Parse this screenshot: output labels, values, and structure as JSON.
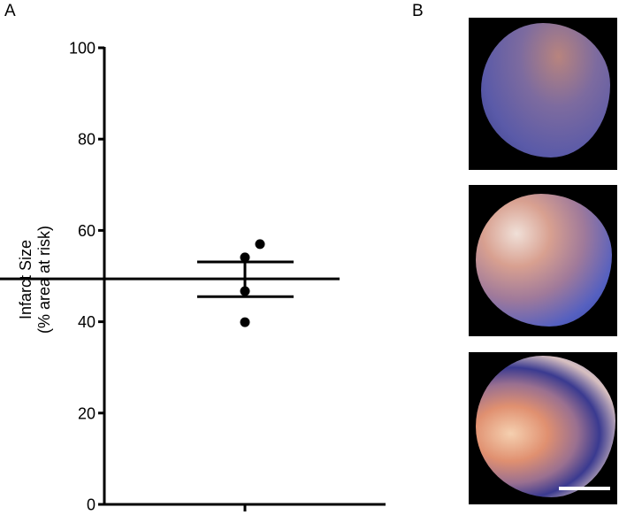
{
  "panels": {
    "a_label": "A",
    "b_label": "B"
  },
  "chart_data": {
    "type": "scatter",
    "title": "",
    "xlabel": "",
    "ylabel_line1": "Infarct Size",
    "ylabel_line2": "(% area at risk)",
    "ylim": [
      0,
      100
    ],
    "yticks": [
      0,
      20,
      40,
      60,
      80,
      100
    ],
    "grid": false,
    "points": [
      57.0,
      54.1,
      46.7,
      39.9
    ],
    "mean": 49.4,
    "sem_upper": 53.1,
    "sem_lower": 45.5
  },
  "photos": {
    "count": 3,
    "scale_bar_color": "#ffffff"
  }
}
